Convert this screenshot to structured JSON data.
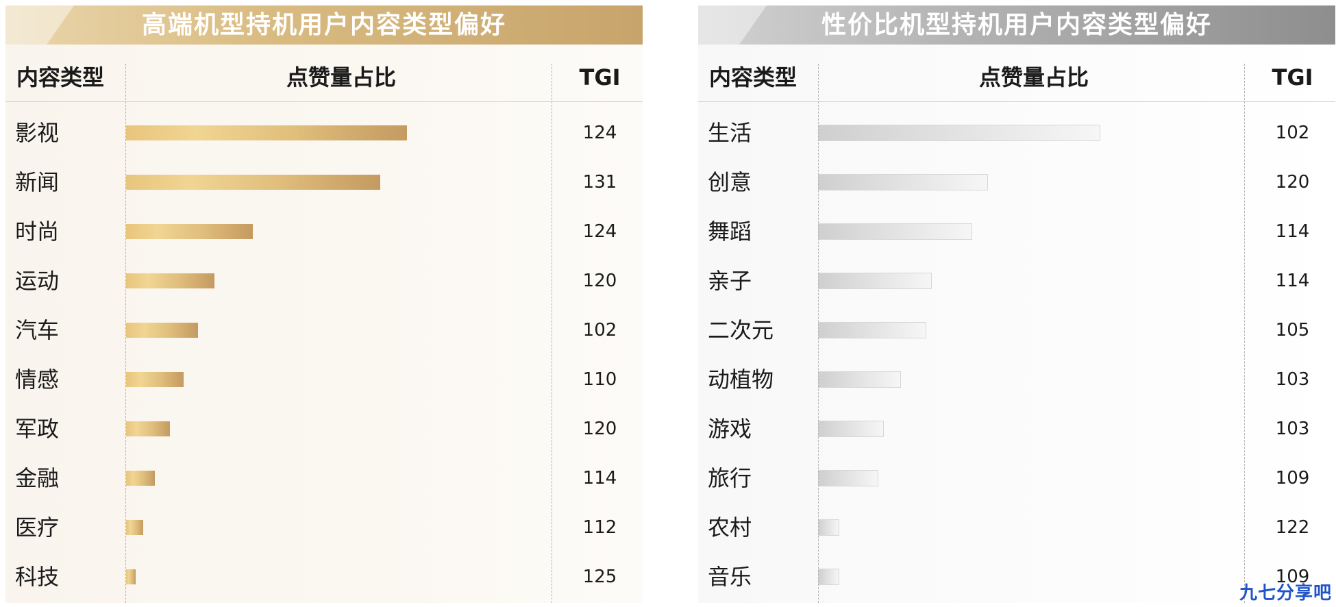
{
  "chart_data": [
    {
      "type": "bar",
      "title": "高端机型持机用户内容类型偏好",
      "columns": [
        "内容类型",
        "点赞量占比",
        "TGI"
      ],
      "categories": [
        "影视",
        "新闻",
        "时尚",
        "运动",
        "汽车",
        "情感",
        "军政",
        "金融",
        "医疗",
        "科技"
      ],
      "series": [
        {
          "values": [
            1.0,
            0.905,
            0.45,
            0.315,
            0.255,
            0.205,
            0.157,
            0.102,
            0.06,
            0.033
          ]
        }
      ],
      "tgi": [
        "124",
        "131",
        "124",
        "120",
        "102",
        "110",
        "120",
        "114",
        "112",
        "125"
      ],
      "colors": [
        "#e8c57c",
        "#c49a60"
      ]
    },
    {
      "type": "bar",
      "title": "性价比机型持机用户内容类型偏好",
      "columns": [
        "内容类型",
        "点赞量占比",
        "TGI"
      ],
      "categories": [
        "生活",
        "创意",
        "舞蹈",
        "亲子",
        "二次元",
        "动植物",
        "游戏",
        "旅行",
        "农村",
        "音乐"
      ],
      "series": [
        {
          "values": [
            1.0,
            0.6,
            0.545,
            0.4,
            0.38,
            0.29,
            0.23,
            0.21,
            0.07,
            0.07
          ]
        }
      ],
      "tgi": [
        "102",
        "120",
        "114",
        "114",
        "105",
        "103",
        "103",
        "109",
        "122",
        "109"
      ],
      "colors": [
        "#cfcfcf",
        "#f6f6f6"
      ]
    }
  ],
  "watermark": "九七分享吧"
}
